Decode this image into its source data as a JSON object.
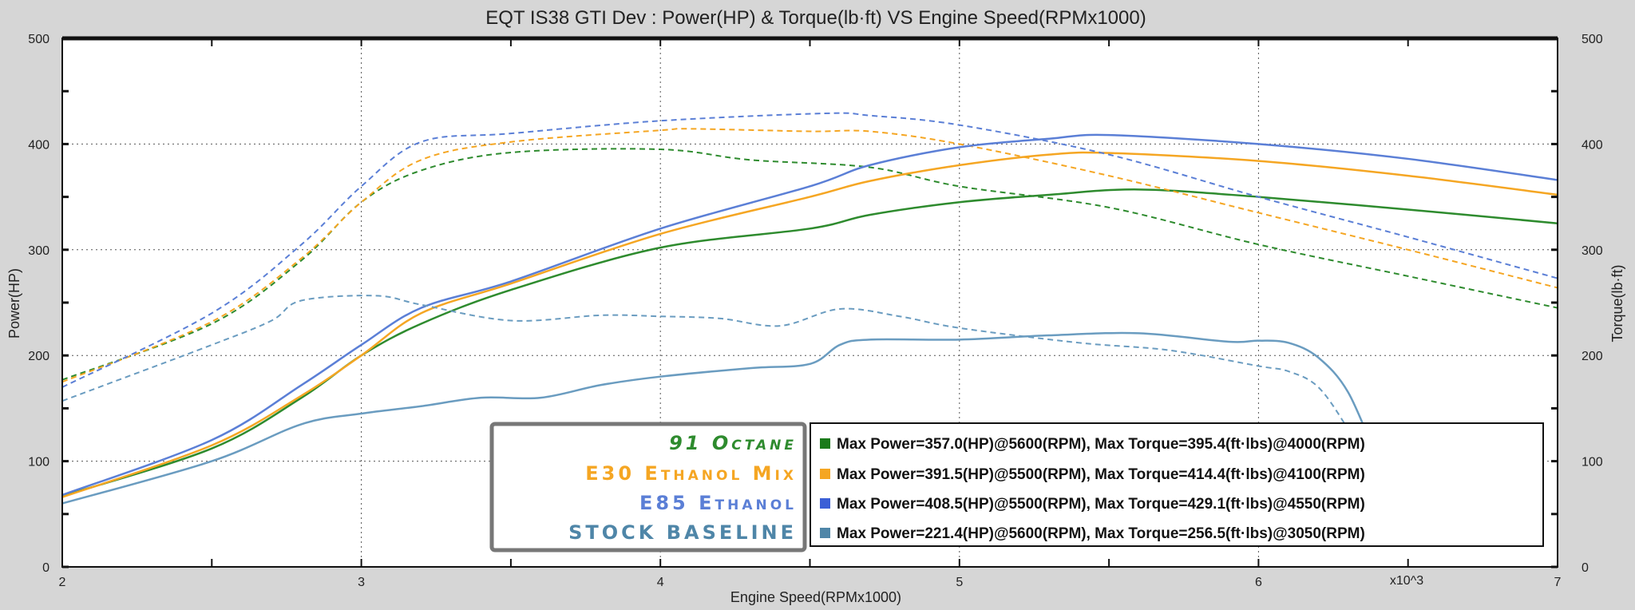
{
  "chart_data": {
    "type": "line",
    "title": "EQT IS38 GTI Dev : Power(HP) & Torque(lb·ft) VS Engine Speed(RPMx1000)",
    "xlabel": "Engine Speed(RPMx1000)",
    "ylabel": "Power(HP)",
    "y2label": "Torque(lb·ft)",
    "x_multiplier_label": "x10^3",
    "xlim": [
      2,
      7
    ],
    "ylim": [
      0,
      500
    ],
    "y2lim": [
      0,
      500
    ],
    "xticks": [
      "2",
      "3",
      "4",
      "5",
      "6",
      "7"
    ],
    "yticks": [
      "0",
      "100",
      "200",
      "300",
      "400",
      "500"
    ],
    "grid": true,
    "legend_labels": [
      "91 Octane",
      "E30 Ethanol Mix",
      "E85 Ethanol",
      "STOCK BASELINE"
    ],
    "stats": [
      "Max Power=357.0(HP)@5600(RPM), Max Torque=395.4(ft·lbs)@4000(RPM)",
      "Max Power=391.5(HP)@5500(RPM), Max Torque=414.4(ft·lbs)@4100(RPM)",
      "Max Power=408.5(HP)@5500(RPM), Max Torque=429.1(ft·lbs)@4550(RPM)",
      "Max Power=221.4(HP)@5600(RPM), Max Torque=256.5(ft·lbs)@3050(RPM)"
    ],
    "series": [
      {
        "name": "91 Octane",
        "color": "#2e8b2e",
        "power": [
          [
            2.0,
            67
          ],
          [
            2.5,
            112
          ],
          [
            2.8,
            160
          ],
          [
            3.0,
            200
          ],
          [
            3.2,
            230
          ],
          [
            3.5,
            262
          ],
          [
            4.0,
            302
          ],
          [
            4.5,
            320
          ],
          [
            4.7,
            333
          ],
          [
            5.0,
            345
          ],
          [
            5.3,
            352
          ],
          [
            5.6,
            357
          ],
          [
            6.0,
            350
          ],
          [
            6.5,
            338
          ],
          [
            7.0,
            325
          ]
        ],
        "torque": [
          [
            2.0,
            177
          ],
          [
            2.5,
            230
          ],
          [
            2.8,
            290
          ],
          [
            3.0,
            345
          ],
          [
            3.2,
            375
          ],
          [
            3.5,
            392
          ],
          [
            4.0,
            395
          ],
          [
            4.3,
            385
          ],
          [
            4.7,
            378
          ],
          [
            5.0,
            360
          ],
          [
            5.5,
            340
          ],
          [
            6.0,
            305
          ],
          [
            6.5,
            275
          ],
          [
            7.0,
            245
          ]
        ]
      },
      {
        "name": "E30 Ethanol Mix",
        "color": "#f5a623",
        "power": [
          [
            2.0,
            66
          ],
          [
            2.5,
            115
          ],
          [
            2.8,
            162
          ],
          [
            3.0,
            200
          ],
          [
            3.2,
            240
          ],
          [
            3.5,
            268
          ],
          [
            4.0,
            315
          ],
          [
            4.5,
            350
          ],
          [
            4.7,
            365
          ],
          [
            5.0,
            380
          ],
          [
            5.3,
            390
          ],
          [
            5.5,
            391.5
          ],
          [
            6.0,
            384
          ],
          [
            6.5,
            370
          ],
          [
            7.0,
            352
          ]
        ],
        "torque": [
          [
            2.0,
            175
          ],
          [
            2.5,
            232
          ],
          [
            2.8,
            292
          ],
          [
            3.0,
            345
          ],
          [
            3.2,
            385
          ],
          [
            3.5,
            402
          ],
          [
            4.0,
            413
          ],
          [
            4.1,
            414.4
          ],
          [
            4.5,
            412
          ],
          [
            4.7,
            412
          ],
          [
            5.0,
            400
          ],
          [
            5.5,
            370
          ],
          [
            6.0,
            335
          ],
          [
            6.5,
            300
          ],
          [
            7.0,
            264
          ]
        ]
      },
      {
        "name": "E85 Ethanol",
        "color": "#5b7fd6",
        "power": [
          [
            2.0,
            68
          ],
          [
            2.5,
            120
          ],
          [
            2.8,
            172
          ],
          [
            3.0,
            210
          ],
          [
            3.2,
            245
          ],
          [
            3.5,
            270
          ],
          [
            4.0,
            320
          ],
          [
            4.5,
            360
          ],
          [
            4.7,
            380
          ],
          [
            5.0,
            397
          ],
          [
            5.3,
            405
          ],
          [
            5.5,
            408.5
          ],
          [
            6.0,
            400
          ],
          [
            6.5,
            386
          ],
          [
            7.0,
            366
          ]
        ],
        "torque": [
          [
            2.0,
            170
          ],
          [
            2.5,
            240
          ],
          [
            2.8,
            305
          ],
          [
            3.0,
            360
          ],
          [
            3.2,
            402
          ],
          [
            3.5,
            410
          ],
          [
            4.0,
            422
          ],
          [
            4.55,
            429
          ],
          [
            4.7,
            427
          ],
          [
            5.0,
            418
          ],
          [
            5.5,
            390
          ],
          [
            6.0,
            350
          ],
          [
            6.5,
            312
          ],
          [
            7.0,
            273
          ]
        ]
      },
      {
        "name": "STOCK BASELINE",
        "color": "#6a9cc0",
        "power": [
          [
            2.0,
            60
          ],
          [
            2.5,
            100
          ],
          [
            2.8,
            135
          ],
          [
            3.0,
            145
          ],
          [
            3.2,
            152
          ],
          [
            3.4,
            160
          ],
          [
            3.6,
            160
          ],
          [
            3.8,
            172
          ],
          [
            4.0,
            180
          ],
          [
            4.3,
            188
          ],
          [
            4.5,
            192
          ],
          [
            4.6,
            210
          ],
          [
            4.7,
            215
          ],
          [
            5.0,
            215
          ],
          [
            5.3,
            219
          ],
          [
            5.6,
            221
          ],
          [
            5.9,
            213
          ],
          [
            6.0,
            214
          ],
          [
            6.1,
            212
          ],
          [
            6.2,
            198
          ],
          [
            6.3,
            165
          ],
          [
            6.4,
            100
          ]
        ],
        "torque": [
          [
            2.0,
            157
          ],
          [
            2.5,
            210
          ],
          [
            2.7,
            233
          ],
          [
            2.8,
            252
          ],
          [
            3.05,
            256.5
          ],
          [
            3.2,
            248
          ],
          [
            3.5,
            233
          ],
          [
            3.8,
            238
          ],
          [
            4.0,
            237
          ],
          [
            4.2,
            235
          ],
          [
            4.4,
            228
          ],
          [
            4.6,
            244
          ],
          [
            4.8,
            237
          ],
          [
            5.0,
            226
          ],
          [
            5.4,
            212
          ],
          [
            5.7,
            205
          ],
          [
            6.0,
            190
          ],
          [
            6.1,
            185
          ],
          [
            6.2,
            170
          ],
          [
            6.3,
            130
          ],
          [
            6.4,
            80
          ]
        ]
      }
    ]
  }
}
